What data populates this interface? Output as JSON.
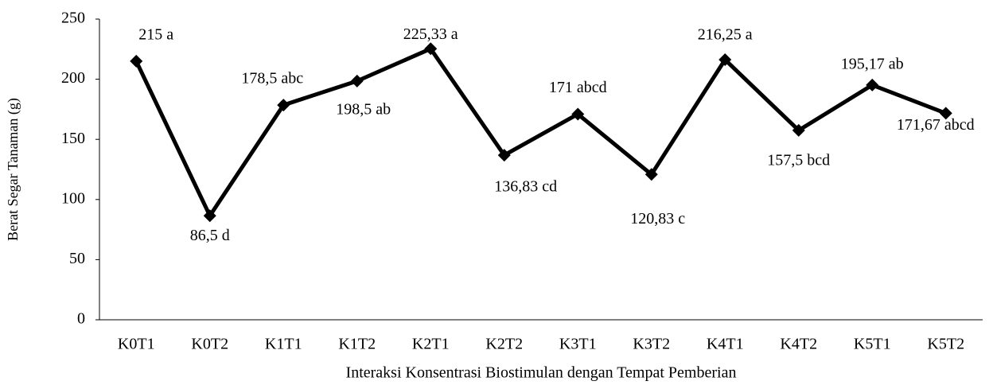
{
  "chart_data": {
    "type": "line",
    "y_label": "Berat Segar Tanaman (g)",
    "x_label": "Interaksi Konsentrasi Biostimulan dengan Tempat Pemberian",
    "categories": [
      "K0T1",
      "K0T2",
      "K1T1",
      "K1T2",
      "K2T1",
      "K2T2",
      "K3T1",
      "K3T2",
      "K4T1",
      "K4T2",
      "K5T1",
      "K5T2"
    ],
    "values": [
      215,
      86.5,
      178.5,
      198.5,
      225.33,
      136.83,
      171,
      120.83,
      216.25,
      157.5,
      195.17,
      171.67
    ],
    "value_labels": [
      "215 a",
      "86,5 d",
      "178,5 abc",
      "198,5 ab",
      "225,33 a",
      "136,83 cd",
      "171 abcd",
      "120,83 c",
      "216,25 a",
      "157,5 bcd",
      "195,17 ab",
      "171,67 abcd"
    ],
    "color": "#000000",
    "ylim": [
      0,
      250
    ],
    "yticks": [
      0,
      50,
      100,
      150,
      200,
      250
    ],
    "grid": false
  }
}
